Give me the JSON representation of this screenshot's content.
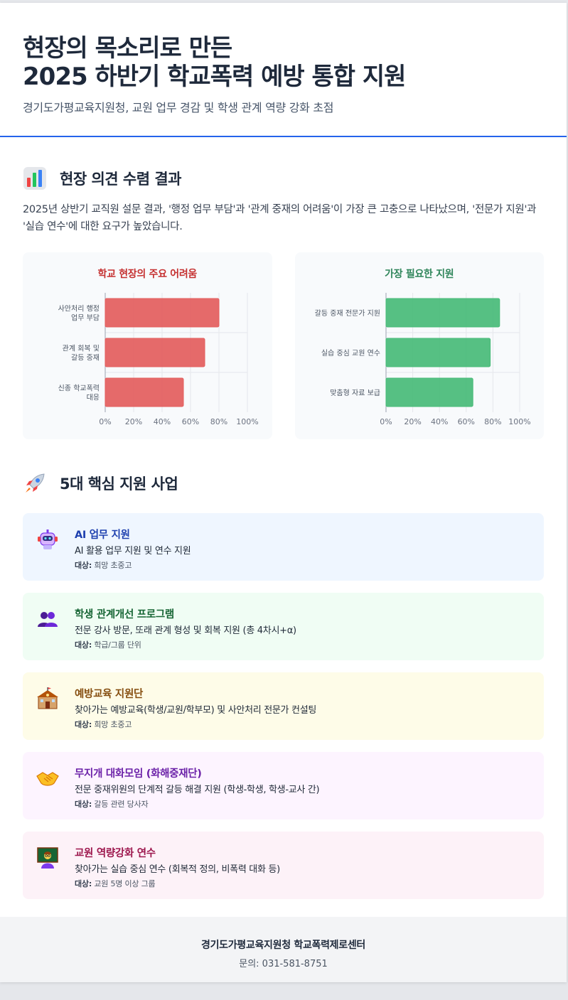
{
  "header": {
    "title_line1": "현장의 목소리로 만든",
    "title_line2": "2025 하반기 학교폭력 예방 통합 지원",
    "subtitle": "경기도가평교육지원청, 교원 업무 경감 및 학생 관계 역량 강화 초점"
  },
  "survey": {
    "section_title": "현장 의견 수렴 결과",
    "icon": "bar-chart-icon",
    "intro": "2025년 상반기 교직원 설문 결과, '행정 업무 부담'과 '관계 중재의 어려움'이 가장 큰 고충으로 나타났으며, '전문가 지원'과 '실습 연수'에 대한 요구가 높았습니다."
  },
  "chart_data": [
    {
      "type": "bar",
      "orientation": "horizontal",
      "title": "학교 현장의 주요 어려움",
      "categories": [
        "사안처리 행정 업무 부담",
        "관계 회복 및 갈등 중재",
        "신종 학교폭력 대응"
      ],
      "values": [
        80,
        70,
        55
      ],
      "xlim": [
        0,
        100
      ],
      "xticks": [
        "0%",
        "20%",
        "40%",
        "60%",
        "80%",
        "100%"
      ],
      "color": "#e35d5d",
      "title_color": "#c53030",
      "grid": true
    },
    {
      "type": "bar",
      "orientation": "horizontal",
      "title": "가장 필요한 지원",
      "categories": [
        "갈등 중재 전문가 지원",
        "실습 중심 교원 연수",
        "맞춤형 자료 보급"
      ],
      "values": [
        85,
        78,
        65
      ],
      "xlim": [
        0,
        100
      ],
      "xticks": [
        "0%",
        "20%",
        "40%",
        "60%",
        "80%",
        "100%"
      ],
      "color": "#48bb78",
      "title_color": "#2f855a",
      "grid": true
    }
  ],
  "programs_section": {
    "section_title": "5대 핵심 지원 사업",
    "icon": "rocket-icon",
    "target_label": "대상:",
    "items": [
      {
        "name": "AI 업무 지원",
        "desc": "AI 활용 업무 지원 및 연수 지원",
        "target": "희망 초중고",
        "icon": "robot-icon",
        "bg": "#eff6ff",
        "color": "#1e40af"
      },
      {
        "name": "학생 관계개선 프로그램",
        "desc": "전문 강사 방문, 또래 관계 형성 및 회복 지원 (총 4차시+α)",
        "target": "학급/그룹 단위",
        "icon": "people-icon",
        "bg": "#f0fdf4",
        "color": "#166534"
      },
      {
        "name": "예방교육 지원단",
        "desc": "찾아가는 예방교육(학생/교원/학부모) 및 사안처리 전문가 컨설팅",
        "target": "희망 초중고",
        "icon": "school-icon",
        "bg": "#fefce8",
        "color": "#854d0e"
      },
      {
        "name": "무지개 대화모임 (화해중재단)",
        "desc": "전문 중재위원의 단계적 갈등 해결 지원 (학생-학생, 학생-교사 간)",
        "target": "갈등 관련 당사자",
        "icon": "handshake-icon",
        "bg": "#fdf4ff",
        "color": "#6b21a8"
      },
      {
        "name": "교원 역량강화 연수",
        "desc": "찾아가는 실습 중심 연수 (회복적 정의, 비폭력 대화 등)",
        "target": "교원 5명 이상 그룹",
        "icon": "teacher-icon",
        "bg": "#fdf2f8",
        "color": "#9d174d"
      }
    ]
  },
  "footer": {
    "org": "경기도가평교육지원청 학교폭력제로센터",
    "contact": "문의: 031-581-8751"
  }
}
